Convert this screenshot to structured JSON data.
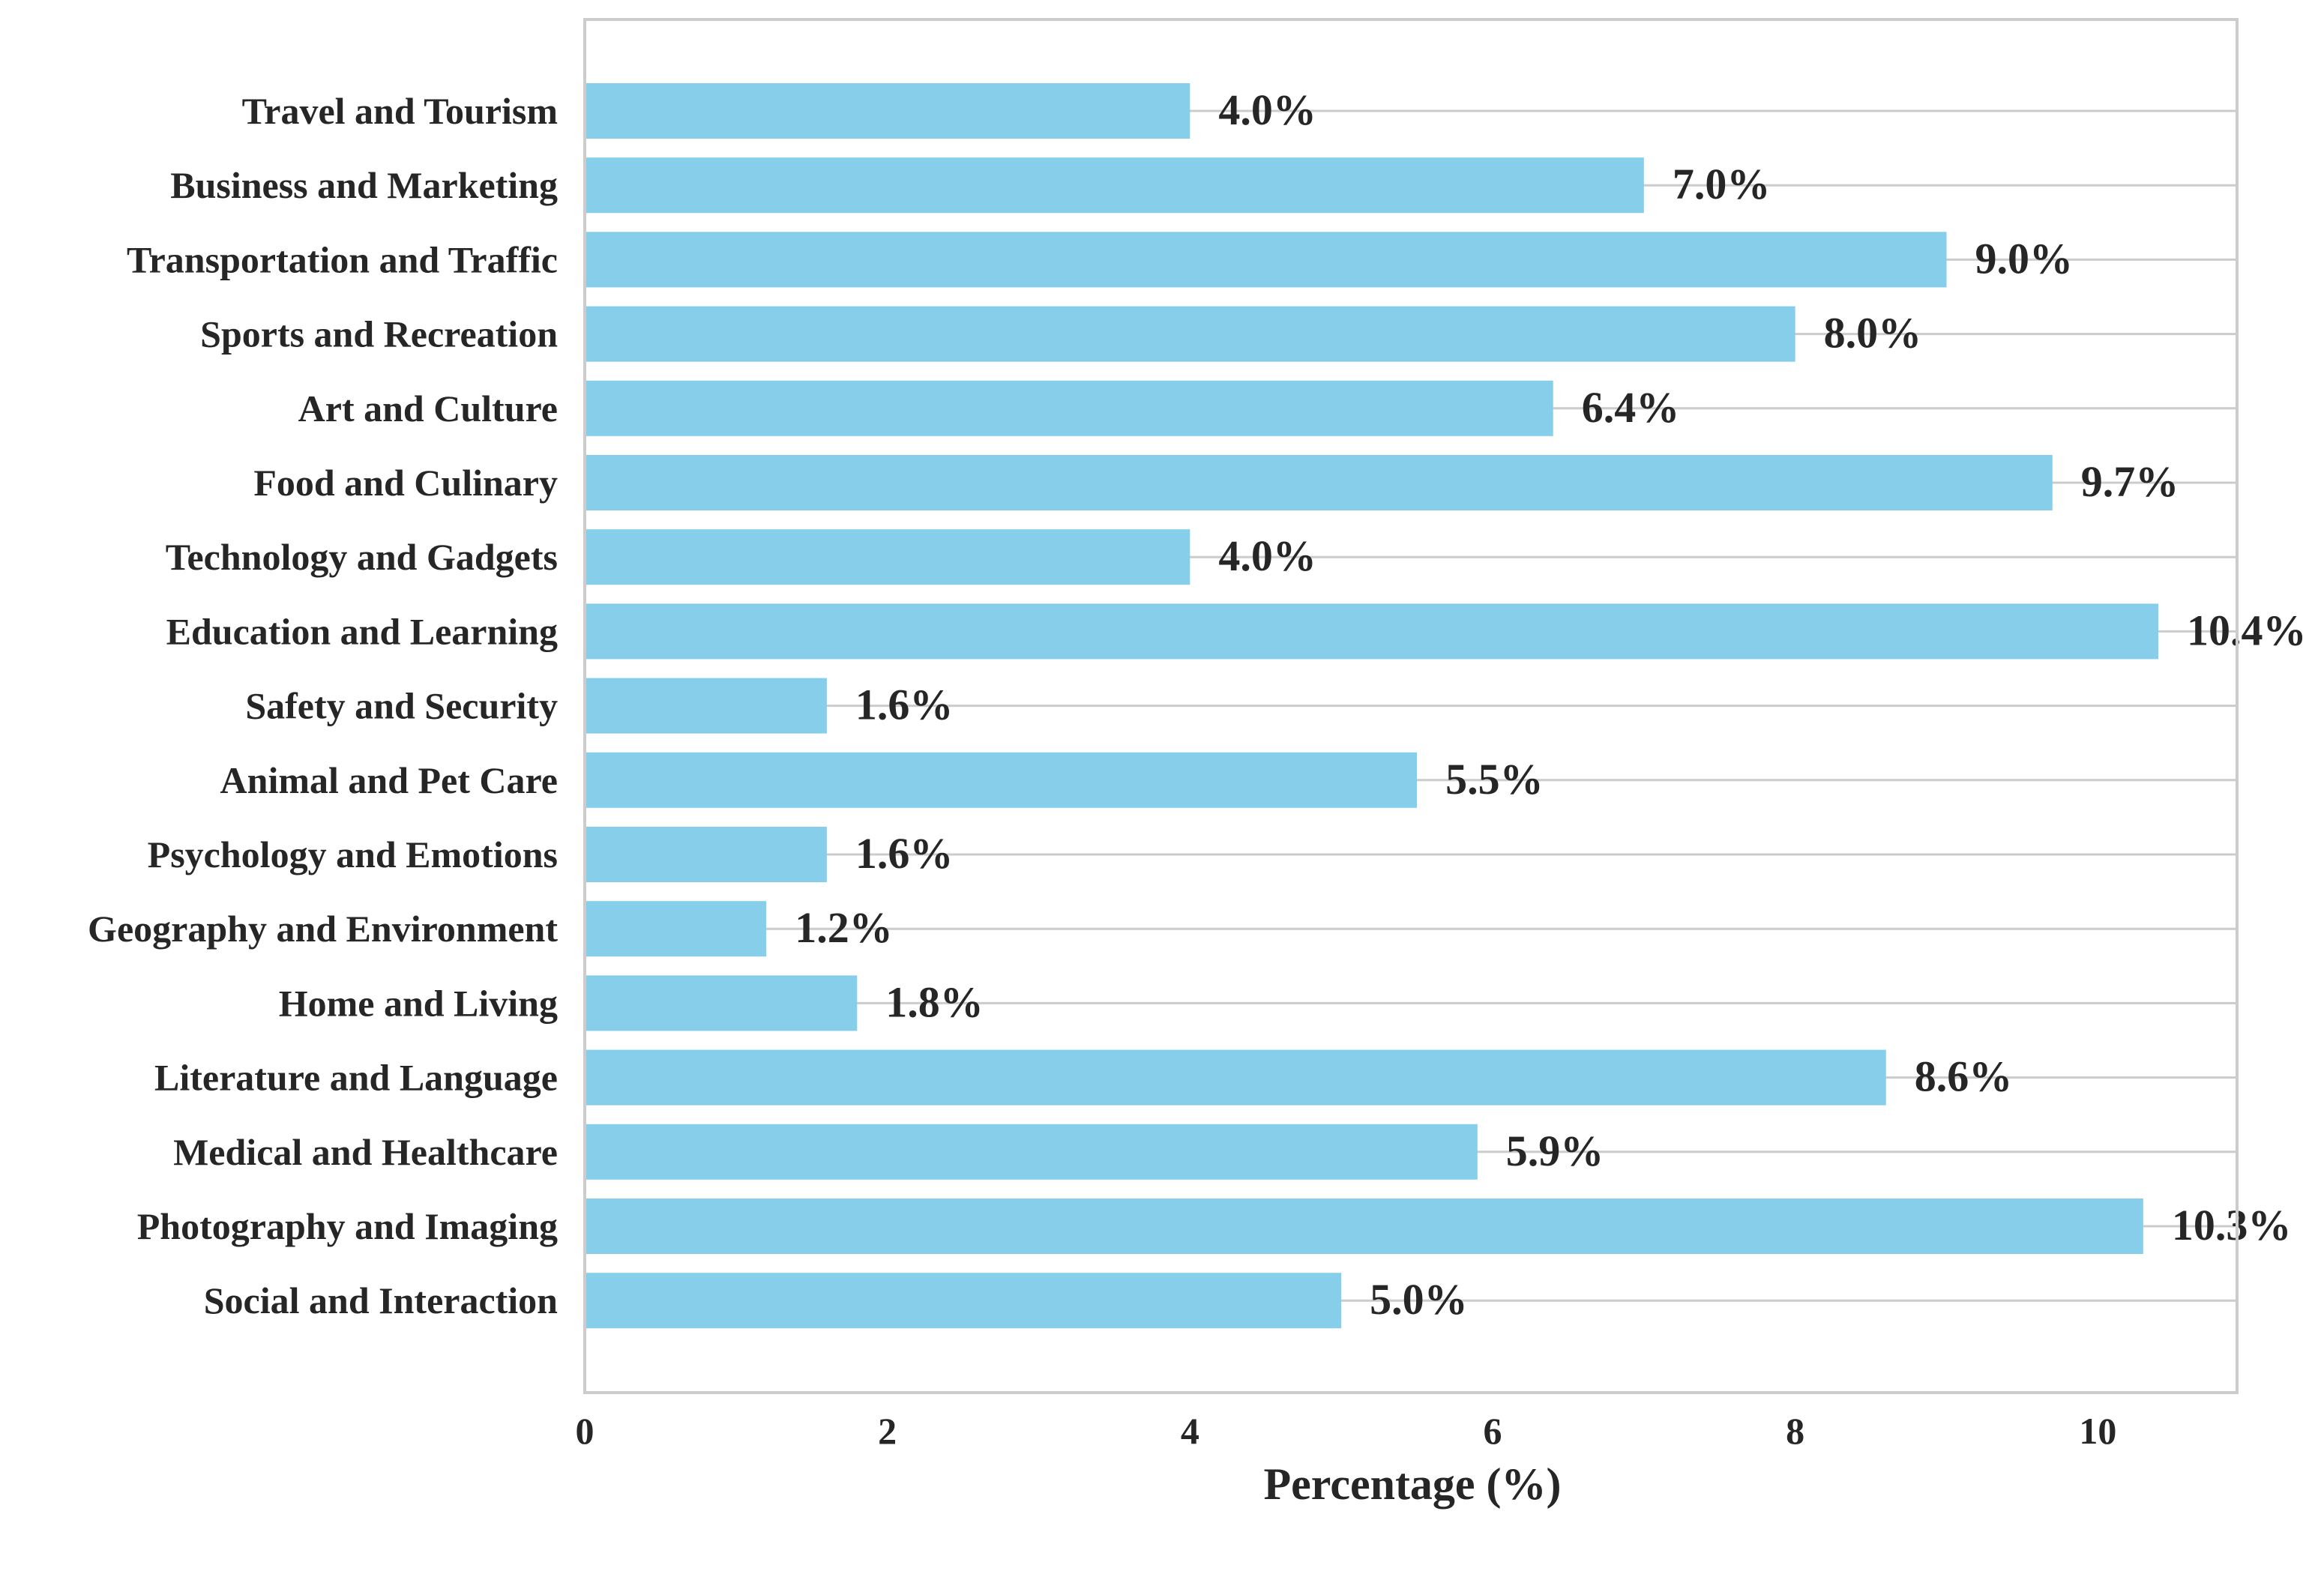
{
  "chart_data": {
    "type": "bar",
    "orientation": "horizontal",
    "title": "",
    "xlabel": "Percentage (%)",
    "ylabel": "",
    "xlim": [
      0,
      10.92
    ],
    "xticks": [
      0,
      2,
      4,
      6,
      8,
      10
    ],
    "grid": "horizontal",
    "bar_color": "#87ceeb",
    "categories": [
      "Travel and Tourism",
      "Business and Marketing",
      "Transportation and Traffic",
      "Sports and Recreation",
      "Art and Culture",
      "Food and Culinary",
      "Technology and Gadgets",
      "Education and Learning",
      "Safety and Security",
      "Animal and Pet Care",
      "Psychology and Emotions",
      "Geography and Environment",
      "Home and Living",
      "Literature and Language",
      "Medical and Healthcare",
      "Photography and Imaging",
      "Social and Interaction"
    ],
    "values": [
      4.0,
      7.0,
      9.0,
      8.0,
      6.4,
      9.7,
      4.0,
      10.4,
      1.6,
      5.5,
      1.6,
      1.2,
      1.8,
      8.6,
      5.9,
      10.3,
      5.0
    ],
    "value_labels": [
      "4.0%",
      "7.0%",
      "9.0%",
      "8.0%",
      "6.4%",
      "9.7%",
      "4.0%",
      "10.4%",
      "1.6%",
      "5.5%",
      "1.6%",
      "1.2%",
      "1.8%",
      "8.6%",
      "5.9%",
      "10.3%",
      "5.0%"
    ]
  }
}
